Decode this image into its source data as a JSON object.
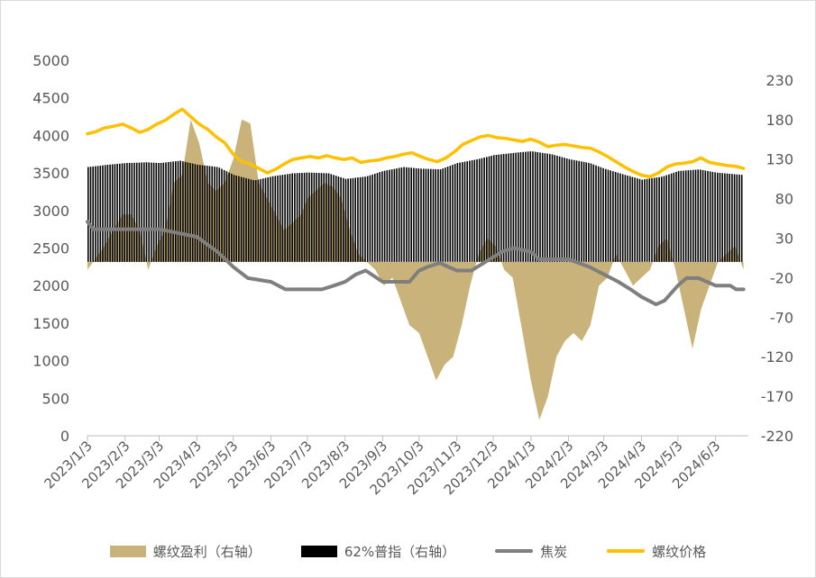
{
  "chart_data": {
    "type": "line",
    "x_ticks": [
      "2023/1/3",
      "2023/2/3",
      "2023/3/3",
      "2023/4/3",
      "2023/5/3",
      "2023/6/3",
      "2023/7/3",
      "2023/8/3",
      "2023/9/3",
      "2023/10/3",
      "2023/11/3",
      "2023/12/3",
      "2024/1/3",
      "2024/2/3",
      "2024/3/3",
      "2024/4/3",
      "2024/5/3",
      "2024/6/3"
    ],
    "y_left": {
      "ticks": [
        0,
        500,
        1000,
        1500,
        2000,
        2500,
        3000,
        3500,
        4000,
        4500,
        5000
      ],
      "ylim": [
        0,
        5000
      ]
    },
    "y_right": {
      "ticks": [
        -220,
        -170,
        -120,
        -70,
        -20,
        30,
        80,
        130,
        180,
        230
      ],
      "ylim": [
        -220,
        255
      ]
    },
    "colors": {
      "profit": "#c9b37a",
      "ore": "#000000",
      "coke": "#7f7f7f",
      "rebar": "#ffc000",
      "axis": "#bfbfbf"
    },
    "series": [
      {
        "name": "螺纹盈利（右轴）",
        "axis": "right",
        "kind": "area",
        "color_key": "profit",
        "data": [
          [
            "2023/1/3",
            -10
          ],
          [
            "2023/1/10",
            5
          ],
          [
            "2023/1/17",
            20
          ],
          [
            "2023/1/24",
            40
          ],
          [
            "2023/2/1",
            60
          ],
          [
            "2023/2/8",
            60
          ],
          [
            "2023/2/15",
            40
          ],
          [
            "2023/2/22",
            -10
          ],
          [
            "2023/3/1",
            20
          ],
          [
            "2023/3/8",
            40
          ],
          [
            "2023/3/15",
            100
          ],
          [
            "2023/3/22",
            110
          ],
          [
            "2023/3/29",
            180
          ],
          [
            "2023/4/5",
            150
          ],
          [
            "2023/4/12",
            100
          ],
          [
            "2023/4/19",
            90
          ],
          [
            "2023/4/26",
            100
          ],
          [
            "2023/5/3",
            130
          ],
          [
            "2023/5/10",
            180
          ],
          [
            "2023/5/17",
            175
          ],
          [
            "2023/5/24",
            100
          ],
          [
            "2023/5/31",
            80
          ],
          [
            "2023/6/7",
            60
          ],
          [
            "2023/6/14",
            40
          ],
          [
            "2023/6/21",
            50
          ],
          [
            "2023/6/28",
            60
          ],
          [
            "2023/7/3",
            80
          ],
          [
            "2023/7/10",
            90
          ],
          [
            "2023/7/17",
            100
          ],
          [
            "2023/7/24",
            95
          ],
          [
            "2023/7/31",
            80
          ],
          [
            "2023/8/7",
            40
          ],
          [
            "2023/8/14",
            10
          ],
          [
            "2023/8/21",
            0
          ],
          [
            "2023/8/28",
            -10
          ],
          [
            "2023/9/4",
            -30
          ],
          [
            "2023/9/11",
            -20
          ],
          [
            "2023/9/18",
            -50
          ],
          [
            "2023/9/25",
            -80
          ],
          [
            "2023/10/3",
            -90
          ],
          [
            "2023/10/10",
            -120
          ],
          [
            "2023/10/17",
            -150
          ],
          [
            "2023/10/24",
            -130
          ],
          [
            "2023/10/31",
            -120
          ],
          [
            "2023/11/7",
            -80
          ],
          [
            "2023/11/14",
            -30
          ],
          [
            "2023/11/21",
            10
          ],
          [
            "2023/11/28",
            30
          ],
          [
            "2023/12/5",
            20
          ],
          [
            "2023/12/12",
            -10
          ],
          [
            "2023/12/19",
            -20
          ],
          [
            "2023/12/26",
            -80
          ],
          [
            "2024/1/3",
            -150
          ],
          [
            "2024/1/10",
            -200
          ],
          [
            "2024/1/17",
            -170
          ],
          [
            "2024/1/24",
            -120
          ],
          [
            "2024/1/31",
            -100
          ],
          [
            "2024/2/7",
            -90
          ],
          [
            "2024/2/14",
            -100
          ],
          [
            "2024/2/21",
            -80
          ],
          [
            "2024/2/28",
            -30
          ],
          [
            "2024/3/6",
            -20
          ],
          [
            "2024/3/13",
            10
          ],
          [
            "2024/3/20",
            -10
          ],
          [
            "2024/3/27",
            -30
          ],
          [
            "2024/4/3",
            -20
          ],
          [
            "2024/4/10",
            -10
          ],
          [
            "2024/4/17",
            20
          ],
          [
            "2024/4/24",
            30
          ],
          [
            "2024/5/1",
            -10
          ],
          [
            "2024/5/8",
            -60
          ],
          [
            "2024/5/15",
            -110
          ],
          [
            "2024/5/22",
            -60
          ],
          [
            "2024/5/29",
            -30
          ],
          [
            "2024/6/5",
            0
          ],
          [
            "2024/6/12",
            10
          ],
          [
            "2024/6/19",
            20
          ],
          [
            "2024/6/26",
            -10
          ]
        ]
      },
      {
        "name": "62%普指（右轴）",
        "axis": "right",
        "kind": "bars",
        "color_key": "ore",
        "data": [
          [
            "2023/1/3",
            120
          ],
          [
            "2023/1/20",
            123
          ],
          [
            "2023/2/3",
            125
          ],
          [
            "2023/2/20",
            126
          ],
          [
            "2023/3/3",
            125
          ],
          [
            "2023/3/20",
            128
          ],
          [
            "2023/4/3",
            123
          ],
          [
            "2023/4/20",
            120
          ],
          [
            "2023/5/3",
            110
          ],
          [
            "2023/5/20",
            103
          ],
          [
            "2023/6/3",
            108
          ],
          [
            "2023/6/20",
            112
          ],
          [
            "2023/7/3",
            113
          ],
          [
            "2023/7/20",
            112
          ],
          [
            "2023/8/3",
            105
          ],
          [
            "2023/8/20",
            108
          ],
          [
            "2023/9/3",
            115
          ],
          [
            "2023/9/20",
            120
          ],
          [
            "2023/10/3",
            118
          ],
          [
            "2023/10/20",
            117
          ],
          [
            "2023/11/3",
            125
          ],
          [
            "2023/11/20",
            130
          ],
          [
            "2023/12/3",
            135
          ],
          [
            "2023/12/20",
            138
          ],
          [
            "2024/1/3",
            140
          ],
          [
            "2024/1/20",
            136
          ],
          [
            "2024/2/3",
            130
          ],
          [
            "2024/2/20",
            125
          ],
          [
            "2024/3/3",
            118
          ],
          [
            "2024/3/20",
            110
          ],
          [
            "2024/4/3",
            104
          ],
          [
            "2024/4/20",
            108
          ],
          [
            "2024/5/3",
            115
          ],
          [
            "2024/5/20",
            117
          ],
          [
            "2024/6/3",
            113
          ],
          [
            "2024/6/25",
            110
          ]
        ]
      },
      {
        "name": "焦炭",
        "axis": "left",
        "kind": "line",
        "color_key": "coke",
        "data": [
          [
            "2023/1/3",
            2850
          ],
          [
            "2023/1/8",
            2750
          ],
          [
            "2023/3/3",
            2750
          ],
          [
            "2023/4/3",
            2650
          ],
          [
            "2023/4/20",
            2450
          ],
          [
            "2023/5/3",
            2250
          ],
          [
            "2023/5/15",
            2100
          ],
          [
            "2023/6/3",
            2050
          ],
          [
            "2023/6/15",
            1950
          ],
          [
            "2023/7/15",
            1950
          ],
          [
            "2023/7/25",
            2000
          ],
          [
            "2023/8/3",
            2050
          ],
          [
            "2023/8/12",
            2150
          ],
          [
            "2023/8/20",
            2200
          ],
          [
            "2023/9/3",
            2050
          ],
          [
            "2023/9/25",
            2050
          ],
          [
            "2023/10/3",
            2200
          ],
          [
            "2023/10/10",
            2250
          ],
          [
            "2023/10/20",
            2300
          ],
          [
            "2023/11/3",
            2200
          ],
          [
            "2023/11/15",
            2200
          ],
          [
            "2023/11/25",
            2300
          ],
          [
            "2023/12/10",
            2450
          ],
          [
            "2023/12/20",
            2500
          ],
          [
            "2024/1/3",
            2450
          ],
          [
            "2024/1/10",
            2350
          ],
          [
            "2024/2/3",
            2350
          ],
          [
            "2024/2/20",
            2250
          ],
          [
            "2024/3/3",
            2150
          ],
          [
            "2024/3/15",
            2050
          ],
          [
            "2024/3/25",
            1950
          ],
          [
            "2024/4/3",
            1850
          ],
          [
            "2024/4/15",
            1750
          ],
          [
            "2024/4/22",
            1800
          ],
          [
            "2024/5/3",
            2000
          ],
          [
            "2024/5/10",
            2100
          ],
          [
            "2024/5/20",
            2100
          ],
          [
            "2024/6/3",
            2000
          ],
          [
            "2024/6/15",
            2000
          ],
          [
            "2024/6/20",
            1950
          ],
          [
            "2024/6/26",
            1950
          ]
        ]
      },
      {
        "name": "螺纹价格",
        "axis": "left",
        "kind": "line",
        "color_key": "rebar",
        "data": [
          [
            "2023/1/3",
            4020
          ],
          [
            "2023/1/10",
            4050
          ],
          [
            "2023/1/17",
            4100
          ],
          [
            "2023/1/24",
            4120
          ],
          [
            "2023/2/1",
            4150
          ],
          [
            "2023/2/8",
            4100
          ],
          [
            "2023/2/15",
            4040
          ],
          [
            "2023/2/22",
            4080
          ],
          [
            "2023/3/1",
            4150
          ],
          [
            "2023/3/8",
            4200
          ],
          [
            "2023/3/15",
            4280
          ],
          [
            "2023/3/22",
            4350
          ],
          [
            "2023/3/29",
            4250
          ],
          [
            "2023/4/5",
            4150
          ],
          [
            "2023/4/12",
            4080
          ],
          [
            "2023/4/19",
            3980
          ],
          [
            "2023/4/26",
            3900
          ],
          [
            "2023/5/3",
            3750
          ],
          [
            "2023/5/10",
            3650
          ],
          [
            "2023/5/17",
            3620
          ],
          [
            "2023/5/24",
            3560
          ],
          [
            "2023/5/31",
            3500
          ],
          [
            "2023/6/7",
            3550
          ],
          [
            "2023/6/14",
            3620
          ],
          [
            "2023/6/21",
            3680
          ],
          [
            "2023/6/28",
            3700
          ],
          [
            "2023/7/5",
            3720
          ],
          [
            "2023/7/12",
            3700
          ],
          [
            "2023/7/19",
            3730
          ],
          [
            "2023/7/26",
            3700
          ],
          [
            "2023/8/2",
            3680
          ],
          [
            "2023/8/9",
            3700
          ],
          [
            "2023/8/16",
            3640
          ],
          [
            "2023/8/23",
            3660
          ],
          [
            "2023/8/30",
            3670
          ],
          [
            "2023/9/6",
            3700
          ],
          [
            "2023/9/13",
            3720
          ],
          [
            "2023/9/20",
            3750
          ],
          [
            "2023/9/27",
            3770
          ],
          [
            "2023/10/4",
            3720
          ],
          [
            "2023/10/11",
            3680
          ],
          [
            "2023/10/18",
            3650
          ],
          [
            "2023/10/25",
            3700
          ],
          [
            "2023/11/1",
            3780
          ],
          [
            "2023/11/8",
            3880
          ],
          [
            "2023/11/15",
            3930
          ],
          [
            "2023/11/22",
            3980
          ],
          [
            "2023/11/29",
            4000
          ],
          [
            "2023/12/6",
            3970
          ],
          [
            "2023/12/13",
            3960
          ],
          [
            "2023/12/20",
            3940
          ],
          [
            "2023/12/27",
            3920
          ],
          [
            "2024/1/3",
            3950
          ],
          [
            "2024/1/10",
            3910
          ],
          [
            "2024/1/17",
            3850
          ],
          [
            "2024/1/24",
            3870
          ],
          [
            "2024/1/31",
            3880
          ],
          [
            "2024/2/7",
            3860
          ],
          [
            "2024/2/14",
            3840
          ],
          [
            "2024/2/21",
            3830
          ],
          [
            "2024/2/28",
            3780
          ],
          [
            "2024/3/6",
            3720
          ],
          [
            "2024/3/13",
            3650
          ],
          [
            "2024/3/20",
            3580
          ],
          [
            "2024/3/27",
            3520
          ],
          [
            "2024/4/3",
            3470
          ],
          [
            "2024/4/10",
            3450
          ],
          [
            "2024/4/17",
            3500
          ],
          [
            "2024/4/24",
            3580
          ],
          [
            "2024/5/1",
            3620
          ],
          [
            "2024/5/8",
            3630
          ],
          [
            "2024/5/15",
            3650
          ],
          [
            "2024/5/22",
            3700
          ],
          [
            "2024/5/29",
            3640
          ],
          [
            "2024/6/5",
            3620
          ],
          [
            "2024/6/12",
            3600
          ],
          [
            "2024/6/19",
            3590
          ],
          [
            "2024/6/26",
            3560
          ]
        ]
      }
    ],
    "legend_position": "bottom",
    "grid": false,
    "title": "",
    "xlabel": "",
    "ylabel": ""
  }
}
